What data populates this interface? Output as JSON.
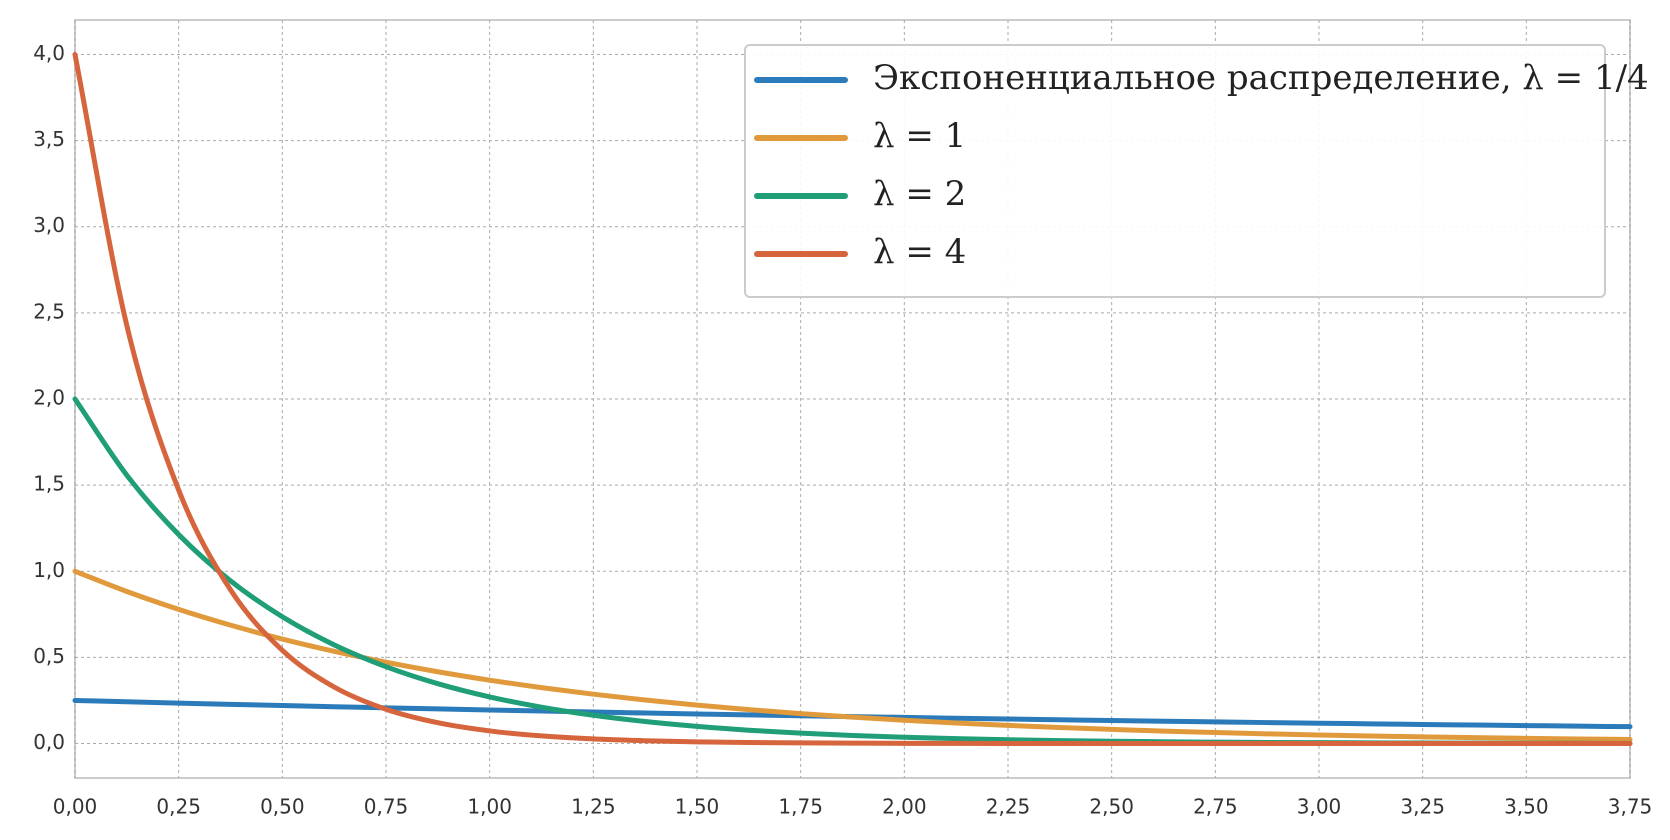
{
  "chart_data": {
    "type": "line",
    "x": [
      0,
      0.125,
      0.25,
      0.375,
      0.5,
      0.625,
      0.75,
      0.875,
      1,
      1.125,
      1.25,
      1.375,
      1.5,
      1.625,
      1.75,
      1.875,
      2,
      2.125,
      2.25,
      2.375,
      2.5,
      2.625,
      2.75,
      2.875,
      3,
      3.125,
      3.25,
      3.375,
      3.5,
      3.625,
      3.75
    ],
    "series": [
      {
        "name": "Экспоненциальное распределение, λ = 1/4",
        "color": "#2b7bba",
        "values": [
          0.25,
          0.2423,
          0.2349,
          0.2276,
          0.2206,
          0.2138,
          0.2073,
          0.2009,
          0.1947,
          0.1887,
          0.1829,
          0.1773,
          0.1718,
          0.1665,
          0.1614,
          0.1564,
          0.1516,
          0.147,
          0.1424,
          0.1381,
          0.1338,
          0.1297,
          0.1257,
          0.1218,
          0.1181,
          0.1145,
          0.1109,
          0.1075,
          0.1042,
          0.101,
          0.0979
        ]
      },
      {
        "name": "λ = 1",
        "color": "#e09a3c",
        "values": [
          1,
          0.8825,
          0.7788,
          0.6873,
          0.6065,
          0.5353,
          0.4724,
          0.4169,
          0.3679,
          0.3247,
          0.2865,
          0.2528,
          0.2231,
          0.1969,
          0.1738,
          0.1534,
          0.1353,
          0.1194,
          0.1054,
          0.093,
          0.0821,
          0.0724,
          0.0639,
          0.0564,
          0.0498,
          0.0439,
          0.0388,
          0.0342,
          0.0302,
          0.0266,
          0.0235
        ]
      },
      {
        "name": "λ = 2",
        "color": "#1f9e77",
        "values": [
          2,
          1.5576,
          1.2131,
          0.9447,
          0.7358,
          0.573,
          0.4463,
          0.3475,
          0.2707,
          0.2108,
          0.1642,
          0.1278,
          0.0996,
          0.0775,
          0.0604,
          0.047,
          0.0366,
          0.0285,
          0.0222,
          0.0173,
          0.0135,
          0.0105,
          0.0082,
          0.0064,
          0.005,
          0.0039,
          0.003,
          0.0023,
          0.0018,
          0.0014,
          0.0011
        ]
      },
      {
        "name": "λ = 4",
        "color": "#d6653d",
        "values": [
          4,
          2.4261,
          1.4715,
          0.8925,
          0.5413,
          0.3283,
          0.1991,
          0.1208,
          0.0733,
          0.0444,
          0.027,
          0.0164,
          0.0099,
          0.006,
          0.0036,
          0.0022,
          0.0013,
          0.0008,
          0.0005,
          0.0003,
          0.0002,
          0.0001,
          0.0001,
          0,
          0,
          0,
          0,
          0,
          0,
          0,
          0
        ]
      }
    ],
    "xlim": [
      0,
      3.75
    ],
    "ylim": [
      -0.2,
      4.2
    ],
    "xticks": [
      {
        "value": 0,
        "label": "0,00"
      },
      {
        "value": 0.25,
        "label": "0,25"
      },
      {
        "value": 0.5,
        "label": "0,50"
      },
      {
        "value": 0.75,
        "label": "0,75"
      },
      {
        "value": 1,
        "label": "1,00"
      },
      {
        "value": 1.25,
        "label": "1,25"
      },
      {
        "value": 1.5,
        "label": "1,50"
      },
      {
        "value": 1.75,
        "label": "1,75"
      },
      {
        "value": 2,
        "label": "2,00"
      },
      {
        "value": 2.25,
        "label": "2,25"
      },
      {
        "value": 2.5,
        "label": "2,50"
      },
      {
        "value": 2.75,
        "label": "2,75"
      },
      {
        "value": 3,
        "label": "3,00"
      },
      {
        "value": 3.25,
        "label": "3,25"
      },
      {
        "value": 3.5,
        "label": "3,50"
      },
      {
        "value": 3.75,
        "label": "3,75"
      }
    ],
    "yticks": [
      {
        "value": 0,
        "label": "0,0"
      },
      {
        "value": 0.5,
        "label": "0,5"
      },
      {
        "value": 1,
        "label": "1,0"
      },
      {
        "value": 1.5,
        "label": "1,5"
      },
      {
        "value": 2,
        "label": "2,0"
      },
      {
        "value": 2.5,
        "label": "2,5"
      },
      {
        "value": 3,
        "label": "3,0"
      },
      {
        "value": 3.5,
        "label": "3,5"
      },
      {
        "value": 4,
        "label": "4,0"
      }
    ],
    "grid": true,
    "legend": "upper right"
  }
}
